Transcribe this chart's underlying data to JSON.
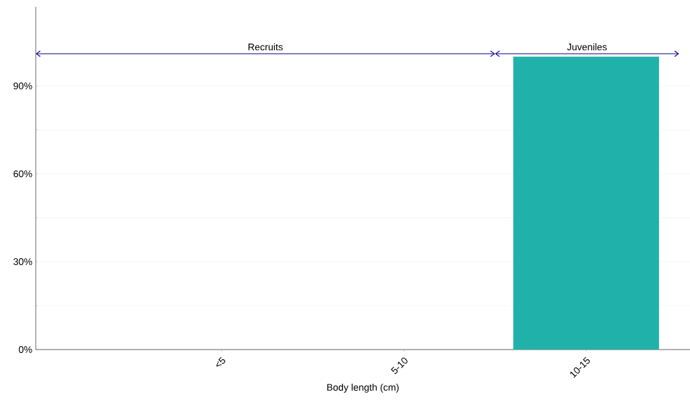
{
  "chart_data": {
    "type": "bar",
    "xlabel": "Body length (cm)",
    "categories": [
      "<5",
      "5-10",
      "10-15"
    ],
    "values": [
      0,
      0,
      100
    ],
    "color": "#20b2aa",
    "ylim": [
      0,
      117
    ],
    "yticks": [
      {
        "value": 0,
        "label": "0%"
      },
      {
        "value": 30,
        "label": "30%"
      },
      {
        "value": 60,
        "label": "60%"
      },
      {
        "value": 90,
        "label": "90%"
      }
    ],
    "grid": "y",
    "annotations": [
      "Recruits",
      "Juveniles"
    ]
  }
}
